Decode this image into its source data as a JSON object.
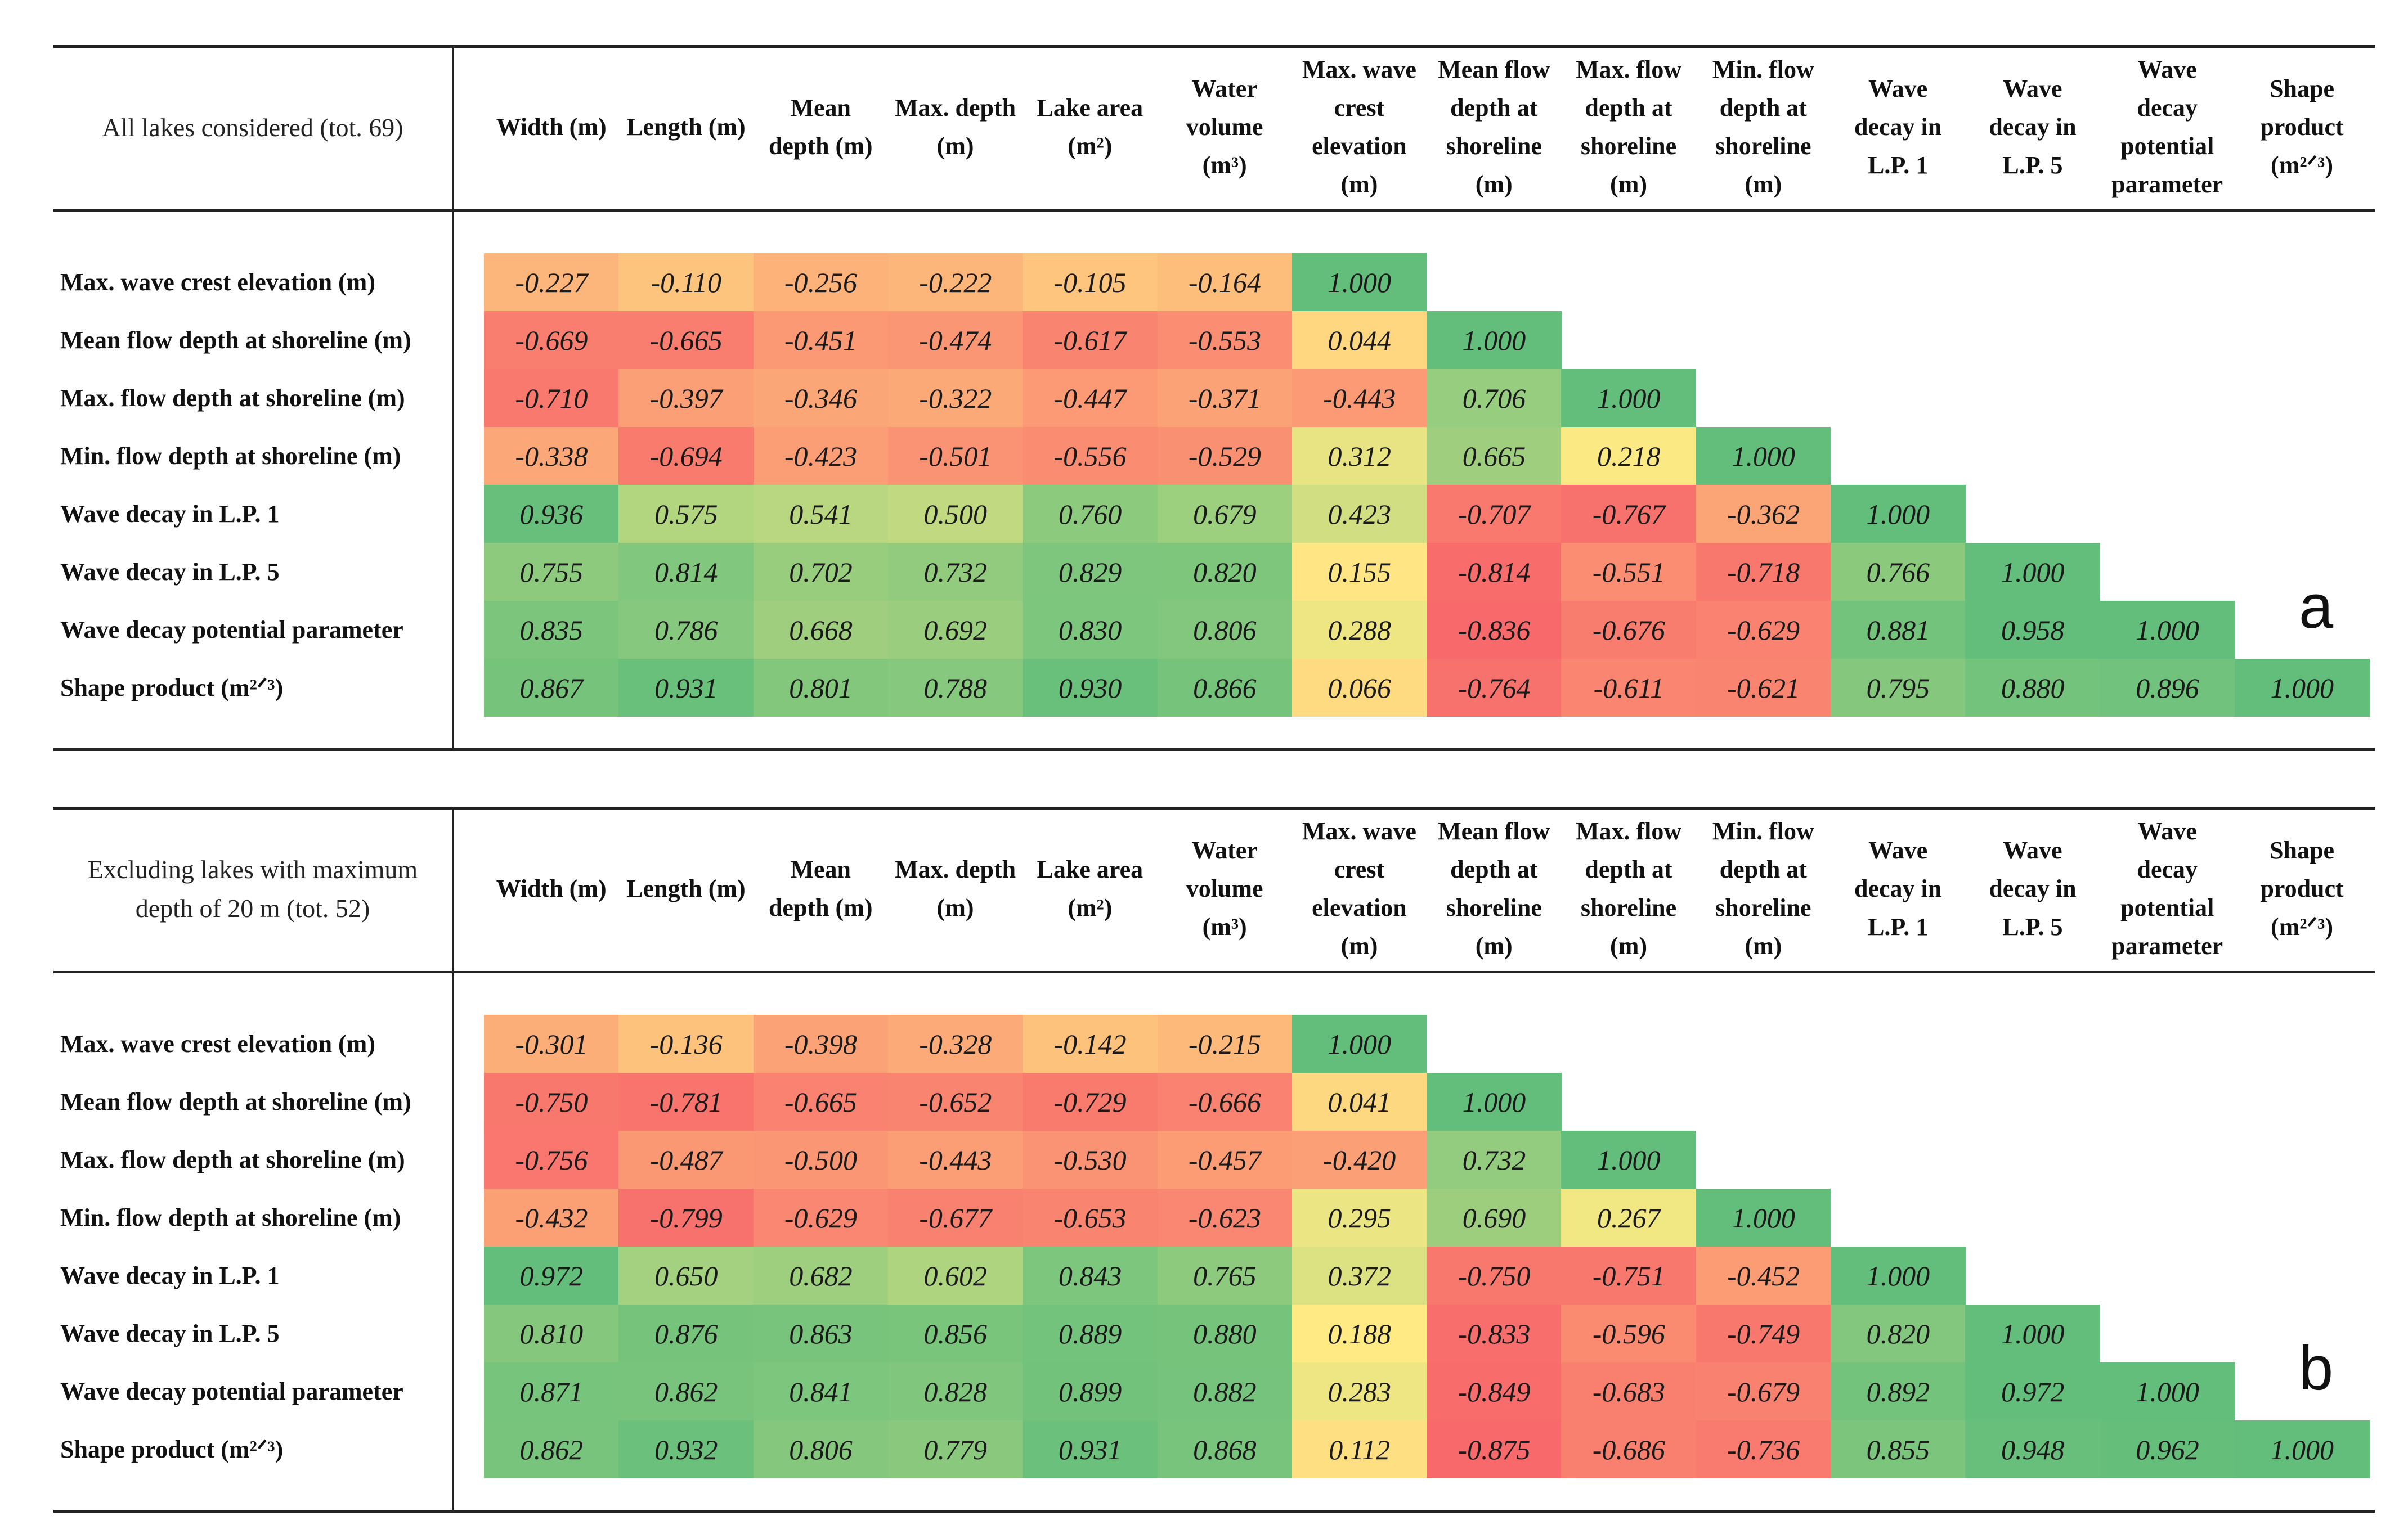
{
  "chart_data": [
    {
      "type": "table",
      "panel": "a",
      "title": "All lakes considered (tot. 69)",
      "columns": [
        "Width (m)",
        "Length (m)",
        "Mean\ndepth (m)",
        "Max. depth\n(m)",
        "Lake area\n(m²)",
        "Water\nvolume\n(m³)",
        "Max. wave\ncrest\nelevation\n(m)",
        "Mean flow\ndepth at\nshoreline\n(m)",
        "Max. flow\ndepth at\nshoreline\n(m)",
        "Min. flow\ndepth at\nshoreline\n(m)",
        "Wave\ndecay in\nL.P. 1",
        "Wave\ndecay in\nL.P. 5",
        "Wave\ndecay\npotential\nparameter",
        "Shape\nproduct\n(m²ᐟ³)"
      ],
      "rows": [
        {
          "label": "Max. wave crest elevation (m)",
          "values": [
            -0.227,
            -0.11,
            -0.256,
            -0.222,
            -0.105,
            -0.164,
            1.0
          ]
        },
        {
          "label": "Mean flow depth at shoreline (m)",
          "values": [
            -0.669,
            -0.665,
            -0.451,
            -0.474,
            -0.617,
            -0.553,
            0.044,
            1.0
          ]
        },
        {
          "label": "Max. flow depth at shoreline (m)",
          "values": [
            -0.71,
            -0.397,
            -0.346,
            -0.322,
            -0.447,
            -0.371,
            -0.443,
            0.706,
            1.0
          ]
        },
        {
          "label": "Min. flow depth at shoreline (m)",
          "values": [
            -0.338,
            -0.694,
            -0.423,
            -0.501,
            -0.556,
            -0.529,
            0.312,
            0.665,
            0.218,
            1.0
          ]
        },
        {
          "label": "Wave decay in L.P. 1",
          "values": [
            0.936,
            0.575,
            0.541,
            0.5,
            0.76,
            0.679,
            0.423,
            -0.707,
            -0.767,
            -0.362,
            1.0
          ]
        },
        {
          "label": "Wave decay in L.P. 5",
          "values": [
            0.755,
            0.814,
            0.702,
            0.732,
            0.829,
            0.82,
            0.155,
            -0.814,
            -0.551,
            -0.718,
            0.766,
            1.0
          ]
        },
        {
          "label": "Wave decay potential parameter",
          "values": [
            0.835,
            0.786,
            0.668,
            0.692,
            0.83,
            0.806,
            0.288,
            -0.836,
            -0.676,
            -0.629,
            0.881,
            0.958,
            1.0
          ]
        },
        {
          "label": "Shape product (m²ᐟ³)",
          "values": [
            0.867,
            0.931,
            0.801,
            0.788,
            0.93,
            0.866,
            0.066,
            -0.764,
            -0.611,
            -0.621,
            0.795,
            0.88,
            0.896,
            1.0
          ]
        }
      ],
      "panel_letter": "a"
    },
    {
      "type": "table",
      "panel": "b",
      "title": "Excluding lakes with maximum depth of 20 m (tot. 52)",
      "columns": [
        "Width (m)",
        "Length (m)",
        "Mean\ndepth (m)",
        "Max. depth\n(m)",
        "Lake area\n(m²)",
        "Water\nvolume\n(m³)",
        "Max. wave\ncrest\nelevation\n(m)",
        "Mean flow\ndepth at\nshoreline\n(m)",
        "Max. flow\ndepth at\nshoreline\n(m)",
        "Min. flow\ndepth at\nshoreline\n(m)",
        "Wave\ndecay in\nL.P. 1",
        "Wave\ndecay in\nL.P. 5",
        "Wave\ndecay\npotential\nparameter",
        "Shape\nproduct\n(m²ᐟ³)"
      ],
      "rows": [
        {
          "label": "Max. wave crest elevation (m)",
          "values": [
            -0.301,
            -0.136,
            -0.398,
            -0.328,
            -0.142,
            -0.215,
            1.0
          ]
        },
        {
          "label": "Mean flow depth at shoreline (m)",
          "values": [
            -0.75,
            -0.781,
            -0.665,
            -0.652,
            -0.729,
            -0.666,
            0.041,
            1.0
          ]
        },
        {
          "label": "Max. flow depth at shoreline (m)",
          "values": [
            -0.756,
            -0.487,
            -0.5,
            -0.443,
            -0.53,
            -0.457,
            -0.42,
            0.732,
            1.0
          ]
        },
        {
          "label": "Min. flow depth at shoreline (m)",
          "values": [
            -0.432,
            -0.799,
            -0.629,
            -0.677,
            -0.653,
            -0.623,
            0.295,
            0.69,
            0.267,
            1.0
          ]
        },
        {
          "label": "Wave decay in L.P. 1",
          "values": [
            0.972,
            0.65,
            0.682,
            0.602,
            0.843,
            0.765,
            0.372,
            -0.75,
            -0.751,
            -0.452,
            1.0
          ]
        },
        {
          "label": "Wave decay in L.P. 5",
          "values": [
            0.81,
            0.876,
            0.863,
            0.856,
            0.889,
            0.88,
            0.188,
            -0.833,
            -0.596,
            -0.749,
            0.82,
            1.0
          ]
        },
        {
          "label": "Wave decay potential parameter",
          "values": [
            0.871,
            0.862,
            0.841,
            0.828,
            0.899,
            0.882,
            0.283,
            -0.849,
            -0.683,
            -0.679,
            0.892,
            0.972,
            1.0
          ]
        },
        {
          "label": "Shape product (m²ᐟ³)",
          "values": [
            0.862,
            0.932,
            0.806,
            0.779,
            0.931,
            0.868,
            0.112,
            -0.875,
            -0.686,
            -0.736,
            0.855,
            0.948,
            0.962,
            1.0
          ]
        }
      ],
      "panel_letter": "b"
    }
  ],
  "color_scale": {
    "negative": "#f8696b",
    "mid": "#ffeb84",
    "positive": "#63be7b"
  }
}
